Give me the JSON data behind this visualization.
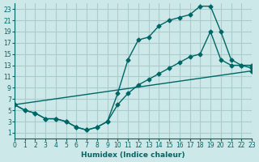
{
  "xlabel": "Humidex (Indice chaleur)",
  "bg_color": "#cce8e8",
  "grid_color": "#aacccc",
  "line_color": "#006666",
  "xlim": [
    0,
    23
  ],
  "ylim": [
    0,
    24
  ],
  "yticks": [
    1,
    3,
    5,
    7,
    9,
    11,
    13,
    15,
    17,
    19,
    21,
    23
  ],
  "xticks": [
    0,
    1,
    2,
    3,
    4,
    5,
    6,
    7,
    8,
    9,
    10,
    11,
    12,
    13,
    14,
    15,
    16,
    17,
    18,
    19,
    20,
    21,
    22,
    23
  ],
  "curve_upper": {
    "x": [
      0,
      1,
      2,
      3,
      4,
      5,
      6,
      7,
      8,
      9,
      10,
      11,
      12,
      13,
      14,
      15,
      16,
      17,
      18,
      19,
      20,
      21,
      22,
      23
    ],
    "y": [
      6,
      5,
      4.5,
      3.5,
      3.5,
      3,
      2,
      1.5,
      2,
      3,
      8,
      14,
      17.5,
      18,
      20,
      21,
      21.5,
      22,
      23.5,
      23.5,
      19,
      14,
      13,
      13
    ]
  },
  "curve_middle": {
    "x": [
      0,
      1,
      2,
      3,
      4,
      5,
      6,
      7,
      8,
      9,
      10,
      11,
      12,
      13,
      14,
      15,
      16,
      17,
      18,
      19,
      20,
      21,
      22,
      23
    ],
    "y": [
      6,
      5,
      4.5,
      3.5,
      3.5,
      3,
      2,
      1.5,
      2,
      3,
      6,
      8,
      9.5,
      10.5,
      11.5,
      12.5,
      13.5,
      14.5,
      15,
      19,
      14,
      13,
      13,
      12.5
    ]
  },
  "curve_diagonal": {
    "x": [
      0,
      23
    ],
    "y": [
      6,
      12
    ]
  }
}
